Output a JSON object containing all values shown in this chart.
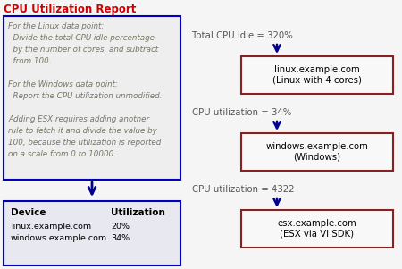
{
  "title": "CPU Utilization Report",
  "title_color": "#cc0000",
  "bg_color": "#f5f5f5",
  "left_box_edge": "#0000bb",
  "right_box_edge": "#882222",
  "left_box_bg": "#eeeeee",
  "right_box_bg": "#f8f8f8",
  "bottom_box_edge": "#0000bb",
  "bottom_box_bg": "#e8e8f0",
  "arrow_color": "#00008B",
  "text_italic_color": "#777766",
  "left_box_text": [
    "For the Linux data point:",
    "  Divide the total CPU idle percentage",
    "  by the number of cores, and subtract",
    "  from 100.",
    "",
    "For the Windows data point:",
    "  Report the CPU utilization unmodified.",
    "",
    "Adding ESX requires adding another",
    "rule to fetch it and divide the value by",
    "100, because the utilization is reported",
    "on a scale from 0 to 10000."
  ],
  "labels_above": [
    "Total CPU idle = 320%",
    "CPU utilization = 34%",
    "CPU utilization = 4322"
  ],
  "right_boxes": [
    "linux.example.com\n(Linux with 4 cores)",
    "windows.example.com\n(Windows)",
    "esx.example.com\n(ESX via VI SDK)"
  ],
  "bottom_header": [
    "Device",
    "Utilization"
  ],
  "bottom_rows": [
    [
      "linux.example.com",
      "20%"
    ],
    [
      "windows.example.com",
      "34%"
    ]
  ]
}
